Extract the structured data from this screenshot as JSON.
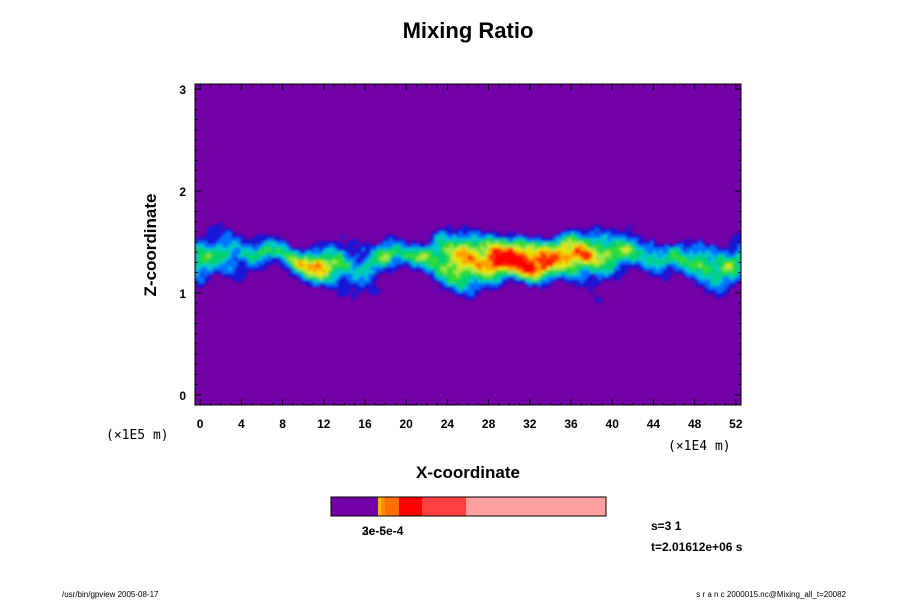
{
  "chart_data": {
    "type": "heatmap",
    "title": "Mixing Ratio",
    "xlabel": "X-coordinate",
    "ylabel": "Z-coordinate",
    "x_scale_label": "(×1E4 m)",
    "y_scale_label": "(×1E5 m)",
    "x_ticks": [
      "0",
      "4",
      "8",
      "12",
      "16",
      "20",
      "24",
      "28",
      "32",
      "36",
      "40",
      "44",
      "48",
      "52"
    ],
    "y_ticks": [
      "0",
      "1",
      "2",
      "3"
    ],
    "xlim": [
      -0.5,
      52.5
    ],
    "ylim": [
      -0.1,
      3.05
    ],
    "background_color": "#7200a6",
    "colormap": [
      "#7200a6",
      "#1418d8",
      "#0073ff",
      "#00c8c8",
      "#00d26e",
      "#32dc32",
      "#a0e646",
      "#e6e600",
      "#ffa000",
      "#ff3200",
      "#ff0000"
    ],
    "colorbar": {
      "colors": [
        "#7200a6",
        "#ffb300",
        "#ff8c00",
        "#ff7000",
        "#ff0000",
        "#ff4040",
        "#ffa0a0"
      ],
      "label_text": "3e-5e-4",
      "label_overlap": "2e-6"
    },
    "footer_left": "/usr/bin/gpview 2005-08-17",
    "footer_right": "s r a n c 2000015.nc@Mixing_all_t=20082",
    "step": "s=3 1",
    "time": "t=2.01612e+06 s"
  }
}
